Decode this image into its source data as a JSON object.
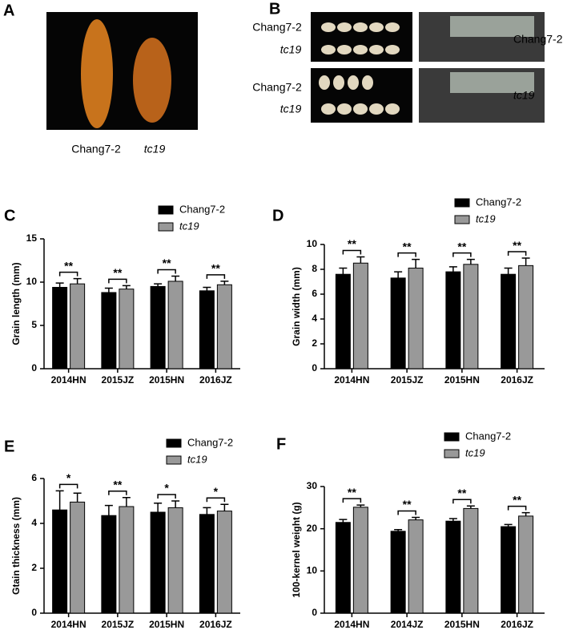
{
  "panels": {
    "A": {
      "letter": "A",
      "labels": [
        "Chang7-2",
        "tc19"
      ]
    },
    "B": {
      "letter": "B",
      "left_labels": [
        "Chang7-2",
        "tc19",
        "Chang7-2",
        "tc19"
      ],
      "right_labels": [
        "Chang7-2",
        "tc19"
      ]
    }
  },
  "chart_data": [
    {
      "type": "bar",
      "panel_label": "C",
      "ylabel": "Grain length (mm)",
      "categories": [
        "2014HN",
        "2015JZ",
        "2015HN",
        "2016JZ"
      ],
      "series": [
        {
          "name": "Chang7-2",
          "color": "#000000",
          "values": [
            9.4,
            8.8,
            9.5,
            9.0
          ],
          "errors": [
            0.5,
            0.5,
            0.3,
            0.4
          ]
        },
        {
          "name": "tc19",
          "color": "#999999",
          "values": [
            9.8,
            9.2,
            10.1,
            9.7
          ],
          "errors": [
            0.6,
            0.4,
            0.6,
            0.4
          ]
        }
      ],
      "annotations": [
        "**",
        "**",
        "**",
        "**"
      ],
      "ylim": [
        0,
        15
      ],
      "yticks": [
        0,
        5,
        10,
        15
      ]
    },
    {
      "type": "bar",
      "panel_label": "D",
      "ylabel": "Grain width (mm)",
      "categories": [
        "2014HN",
        "2015JZ",
        "2015HN",
        "2016JZ"
      ],
      "series": [
        {
          "name": "Chang7-2",
          "color": "#000000",
          "values": [
            7.6,
            7.3,
            7.8,
            7.6
          ],
          "errors": [
            0.5,
            0.5,
            0.4,
            0.5
          ]
        },
        {
          "name": "tc19",
          "color": "#999999",
          "values": [
            8.5,
            8.1,
            8.4,
            8.3
          ],
          "errors": [
            0.5,
            0.7,
            0.4,
            0.6
          ]
        }
      ],
      "annotations": [
        "**",
        "**",
        "**",
        "**"
      ],
      "ylim": [
        0,
        10
      ],
      "yticks": [
        0,
        2,
        4,
        6,
        8,
        10
      ]
    },
    {
      "type": "bar",
      "panel_label": "E",
      "ylabel": "Gtain thickness (mm)",
      "categories": [
        "2014HN",
        "2015JZ",
        "2015HN",
        "2016JZ"
      ],
      "series": [
        {
          "name": "Chang7-2",
          "color": "#000000",
          "values": [
            4.6,
            4.35,
            4.5,
            4.4
          ],
          "errors": [
            0.85,
            0.45,
            0.4,
            0.3
          ]
        },
        {
          "name": "tc19",
          "color": "#999999",
          "values": [
            4.95,
            4.75,
            4.7,
            4.55
          ],
          "errors": [
            0.4,
            0.4,
            0.3,
            0.3
          ]
        }
      ],
      "annotations": [
        "*",
        "**",
        "*",
        "*"
      ],
      "ylim": [
        0,
        6
      ],
      "yticks": [
        0,
        2,
        4,
        6
      ]
    },
    {
      "type": "bar",
      "panel_label": "F",
      "ylabel": "100-kernel weight (g)",
      "categories": [
        "2014HN",
        "2014JZ",
        "2015HN",
        "2016JZ"
      ],
      "series": [
        {
          "name": "Chang7-2",
          "color": "#000000",
          "values": [
            21.5,
            19.4,
            21.8,
            20.5
          ],
          "errors": [
            0.7,
            0.4,
            0.6,
            0.5
          ]
        },
        {
          "name": "tc19",
          "color": "#999999",
          "values": [
            25.1,
            22.1,
            24.8,
            23.0
          ],
          "errors": [
            0.5,
            0.6,
            0.6,
            0.8
          ]
        }
      ],
      "annotations": [
        "**",
        "**",
        "**",
        "**"
      ],
      "ylim": [
        0,
        30
      ],
      "yticks": [
        0,
        10,
        20,
        30
      ]
    }
  ]
}
